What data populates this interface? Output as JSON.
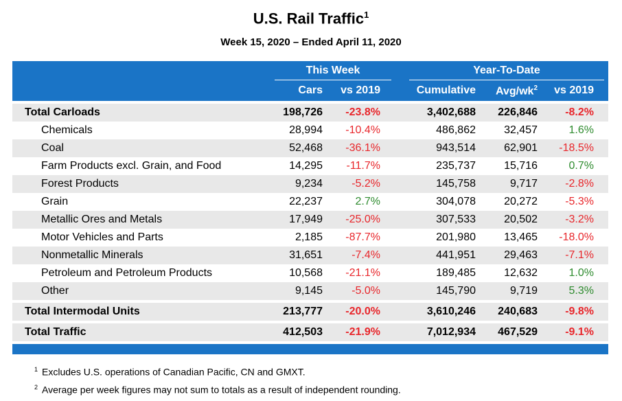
{
  "title": "U.S. Rail Traffic",
  "title_note": "1",
  "subtitle": "Week 15, 2020 – Ended April 11, 2020",
  "colors": {
    "header_bg": "#1a74c6",
    "negative": "#e8262b",
    "positive": "#2e8b2e",
    "shade": "#e8e8e8"
  },
  "chart_data": {
    "type": "table",
    "groups": [
      "This Week",
      "Year-To-Date"
    ],
    "columns": [
      "Cars",
      "vs 2019",
      "Cumulative",
      "Avg/wk",
      "vs 2019"
    ],
    "avg_note": "2",
    "rows": [
      {
        "label": "Total Carloads",
        "cars": "198,726",
        "wk_vs": "-23.8%",
        "wk_sign": "neg",
        "cum": "3,402,688",
        "avg": "226,846",
        "ytd_vs": "-8.2%",
        "ytd_sign": "neg",
        "total": true
      },
      {
        "label": "Chemicals",
        "cars": "28,994",
        "wk_vs": "-10.4%",
        "wk_sign": "neg",
        "cum": "486,862",
        "avg": "32,457",
        "ytd_vs": "1.6%",
        "ytd_sign": "pos",
        "total": false
      },
      {
        "label": "Coal",
        "cars": "52,468",
        "wk_vs": "-36.1%",
        "wk_sign": "neg",
        "cum": "943,514",
        "avg": "62,901",
        "ytd_vs": "-18.5%",
        "ytd_sign": "neg",
        "total": false
      },
      {
        "label": "Farm Products excl. Grain, and Food",
        "cars": "14,295",
        "wk_vs": "-11.7%",
        "wk_sign": "neg",
        "cum": "235,737",
        "avg": "15,716",
        "ytd_vs": "0.7%",
        "ytd_sign": "pos",
        "total": false
      },
      {
        "label": "Forest Products",
        "cars": "9,234",
        "wk_vs": "-5.2%",
        "wk_sign": "neg",
        "cum": "145,758",
        "avg": "9,717",
        "ytd_vs": "-2.8%",
        "ytd_sign": "neg",
        "total": false
      },
      {
        "label": "Grain",
        "cars": "22,237",
        "wk_vs": "2.7%",
        "wk_sign": "pos",
        "cum": "304,078",
        "avg": "20,272",
        "ytd_vs": "-5.3%",
        "ytd_sign": "neg",
        "total": false
      },
      {
        "label": "Metallic Ores and Metals",
        "cars": "17,949",
        "wk_vs": "-25.0%",
        "wk_sign": "neg",
        "cum": "307,533",
        "avg": "20,502",
        "ytd_vs": "-3.2%",
        "ytd_sign": "neg",
        "total": false
      },
      {
        "label": "Motor Vehicles and Parts",
        "cars": "2,185",
        "wk_vs": "-87.7%",
        "wk_sign": "neg",
        "cum": "201,980",
        "avg": "13,465",
        "ytd_vs": "-18.0%",
        "ytd_sign": "neg",
        "total": false
      },
      {
        "label": "Nonmetallic Minerals",
        "cars": "31,651",
        "wk_vs": "-7.4%",
        "wk_sign": "neg",
        "cum": "441,951",
        "avg": "29,463",
        "ytd_vs": "-7.1%",
        "ytd_sign": "neg",
        "total": false
      },
      {
        "label": "Petroleum and Petroleum Products",
        "cars": "10,568",
        "wk_vs": "-21.1%",
        "wk_sign": "neg",
        "cum": "189,485",
        "avg": "12,632",
        "ytd_vs": "1.0%",
        "ytd_sign": "pos",
        "total": false
      },
      {
        "label": "Other",
        "cars": "9,145",
        "wk_vs": "-5.0%",
        "wk_sign": "neg",
        "cum": "145,790",
        "avg": "9,719",
        "ytd_vs": "5.3%",
        "ytd_sign": "pos",
        "total": false
      },
      {
        "label": "Total Intermodal Units",
        "cars": "213,777",
        "wk_vs": "-20.0%",
        "wk_sign": "neg",
        "cum": "3,610,246",
        "avg": "240,683",
        "ytd_vs": "-9.8%",
        "ytd_sign": "neg",
        "total": true
      },
      {
        "label": "Total Traffic",
        "cars": "412,503",
        "wk_vs": "-21.9%",
        "wk_sign": "neg",
        "cum": "7,012,934",
        "avg": "467,529",
        "ytd_vs": "-9.1%",
        "ytd_sign": "neg",
        "total": true
      }
    ]
  },
  "footnotes": [
    {
      "mark": "1",
      "text": "Excludes U.S. operations of Canadian Pacific, CN and GMXT."
    },
    {
      "mark": "2",
      "text": "Average per week figures may not sum to totals as a result of independent rounding."
    }
  ]
}
